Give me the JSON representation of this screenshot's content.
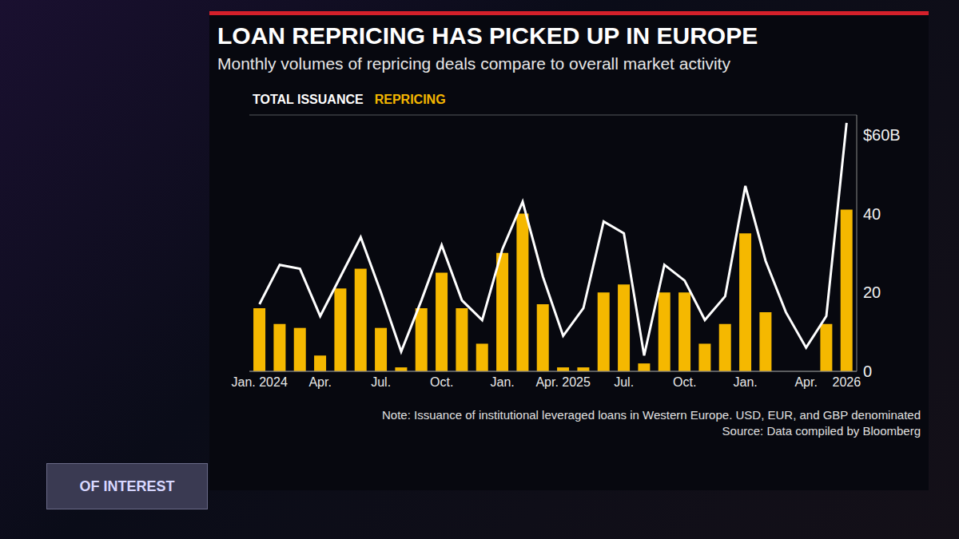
{
  "chart_data": {
    "type": "bar",
    "title": "LOAN REPRICING HAS PICKED UP IN EUROPE",
    "subtitle": "Monthly volumes of repricing deals compare to overall market activity",
    "note": "Note: Issuance of institutional leveraged loans in Western Europe. USD, EUR, and GBP denominated",
    "source": "Source: Data compiled by Bloomberg",
    "annotations": [
      "OF INTEREST"
    ],
    "categories": [
      "Jan. 2024",
      null,
      null,
      "Apr.",
      null,
      null,
      "Jul.",
      null,
      null,
      "Oct.",
      null,
      null,
      "Jan.",
      null,
      null,
      "Apr. 2025",
      null,
      null,
      "Jul.",
      null,
      null,
      "Oct.",
      null,
      null,
      "Jan.",
      null,
      null,
      "Apr.",
      null,
      "2026"
    ],
    "series": [
      {
        "name": "TOTAL ISSUANCE",
        "type": "line",
        "color": "#ffffff",
        "values": [
          17,
          27,
          26,
          14,
          24,
          34,
          20,
          5,
          18,
          32,
          18,
          13,
          31,
          43,
          24,
          9,
          16,
          38,
          35,
          4,
          27,
          23,
          13,
          19,
          47,
          28,
          15,
          6,
          14,
          63
        ]
      },
      {
        "name": "REPRICING",
        "type": "bar",
        "color": "#f5b800",
        "values": [
          16,
          12,
          11,
          4,
          21,
          26,
          11,
          1,
          16,
          25,
          16,
          7,
          30,
          40,
          17,
          1,
          1,
          20,
          22,
          2,
          20,
          20,
          7,
          12,
          35,
          15,
          0,
          0,
          12,
          41
        ]
      }
    ],
    "ylim": [
      0,
      65
    ],
    "yticks": [
      0,
      20,
      40,
      {
        "value": 60,
        "label": "$60B"
      }
    ],
    "grid": true,
    "legend": "top-left"
  }
}
